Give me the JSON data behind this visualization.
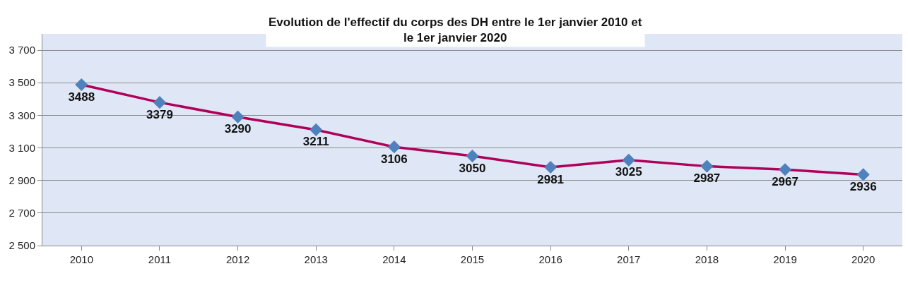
{
  "chart_data": {
    "type": "line",
    "title": "Evolution de l'effectif du corps des DH entre le 1er janvier 2010 et\nle 1er janvier 2020",
    "categories": [
      "2010",
      "2011",
      "2012",
      "2013",
      "2014",
      "2015",
      "2016",
      "2017",
      "2018",
      "2019",
      "2020"
    ],
    "series": [
      {
        "color": "#b0005a",
        "colors": [
          "#4f81bd",
          "#4f81bd",
          "#4f81bd",
          "#4f81bd",
          "#4f81bd",
          "#4f81bd",
          "#4f81bd",
          "#4f81bd",
          "#4f81bd",
          "#4f81bd",
          "#4f81bd"
        ],
        "values": [
          3488,
          3379,
          3290,
          3211,
          3106,
          3050,
          2981,
          3025,
          2987,
          2967,
          2936
        ]
      }
    ],
    "ylim": [
      2500,
      3800
    ],
    "yticks": [
      {
        "value": 2500,
        "label": "2 500"
      },
      {
        "value": 2700,
        "label": "2 700"
      },
      {
        "value": 2900,
        "label": "2 900"
      },
      {
        "value": 3100,
        "label": "3 100"
      },
      {
        "value": 3300,
        "label": "3 300"
      },
      {
        "value": 3500,
        "label": "3 500"
      },
      {
        "value": 3700,
        "label": "3 700"
      }
    ],
    "grid": "y",
    "marker": "diamond",
    "line_style": "solid",
    "data_labels": true
  }
}
